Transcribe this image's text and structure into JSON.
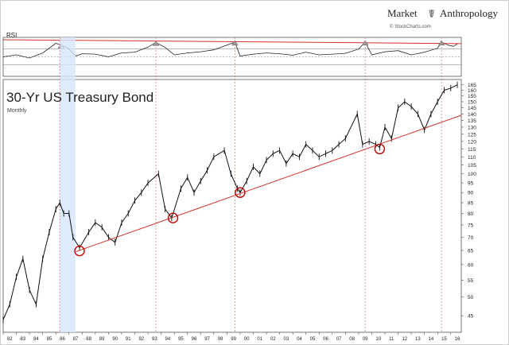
{
  "header": {
    "brand_left": "Market",
    "brand_right": "Anthropology",
    "source": "© StockCharts.com"
  },
  "rsi_panel": {
    "label": "RSI",
    "ylim": [
      0,
      100
    ],
    "upper_band": 70,
    "lower_band": 30,
    "mid_line": 50
  },
  "main_panel": {
    "title": "30-Yr US Treasury Bond",
    "subtitle": "Monthly"
  },
  "chart_data": {
    "type": "line",
    "title": "30-Yr US Treasury Bond",
    "subtitle": "Monthly",
    "y_scale": "log",
    "ylim": [
      41,
      170
    ],
    "xlim": [
      1982.0,
      2016.8
    ],
    "y_ticks": [
      45,
      50,
      55,
      60,
      65,
      70,
      75,
      80,
      85,
      90,
      95,
      100,
      105,
      110,
      115,
      120,
      125,
      130,
      135,
      140,
      145,
      150,
      155,
      160,
      165
    ],
    "x_ticks": [
      "82",
      "83",
      "84",
      "85",
      "86",
      "87",
      "88",
      "89",
      "90",
      "91",
      "92",
      "93",
      "94",
      "95",
      "96",
      "97",
      "98",
      "99",
      "00",
      "01",
      "02",
      "03",
      "04",
      "05",
      "06",
      "07",
      "08",
      "09",
      "10",
      "11",
      "12",
      "13",
      "14",
      "15",
      "16"
    ],
    "series": [
      {
        "x": [
          1982.0,
          1982.5,
          1983.0,
          1983.5,
          1984.0,
          1984.5,
          1985.0,
          1985.5,
          1986.0,
          1986.3,
          1986.6,
          1987.0,
          1987.3,
          1987.8,
          1988.5,
          1989.0,
          1989.5,
          1990.0,
          1990.5,
          1991.0,
          1991.5,
          1992.0,
          1992.5,
          1993.0,
          1993.8,
          1994.3,
          1994.8,
          1995.5,
          1996.0,
          1996.5,
          1997.0,
          1997.5,
          1998.0,
          1998.8,
          1999.3,
          1999.8,
          2000.0,
          2000.5,
          2001.0,
          2001.5,
          2002.0,
          2002.5,
          2003.0,
          2003.5,
          2004.0,
          2004.5,
          2005.0,
          2005.5,
          2006.0,
          2006.5,
          2007.0,
          2007.5,
          2008.0,
          2008.9,
          2009.3,
          2009.8,
          2010.3,
          2010.6,
          2011.0,
          2011.5,
          2012.0,
          2012.5,
          2013.0,
          2013.5,
          2014.0,
          2014.5,
          2015.0,
          2015.5,
          2016.0,
          2016.5
        ],
        "y": [
          44,
          48,
          56,
          62,
          52,
          48,
          62,
          72,
          82,
          85,
          80,
          80,
          70,
          66,
          72,
          76,
          74,
          70,
          68,
          76,
          80,
          86,
          90,
          95,
          100,
          82,
          78,
          92,
          98,
          90,
          96,
          102,
          110,
          114,
          100,
          92,
          90,
          96,
          104,
          100,
          108,
          112,
          114,
          106,
          112,
          110,
          118,
          114,
          110,
          112,
          114,
          118,
          122,
          140,
          118,
          120,
          118,
          116,
          130,
          122,
          145,
          150,
          146,
          140,
          128,
          140,
          150,
          160,
          162,
          165
        ]
      }
    ],
    "support_line": {
      "x": [
        1987.5,
        2016.8
      ],
      "y": [
        64.5,
        139
      ]
    },
    "rsi_series": {
      "x": [
        1982.0,
        1983,
        1984,
        1985,
        1986.0,
        1986.4,
        1986.9,
        1987.5,
        1988,
        1989,
        1990,
        1991,
        1992,
        1993.0,
        1993.6,
        1994.3,
        1995,
        1996,
        1997,
        1998,
        1999.0,
        1999.6,
        2000,
        2001,
        2002,
        2003,
        2004,
        2005,
        2006,
        2007,
        2008,
        2009.0,
        2009.5,
        2010,
        2011,
        2012,
        2013,
        2014,
        2015.0,
        2015.3,
        2015.8,
        2016.2,
        2016.5
      ],
      "y": [
        50,
        55,
        47,
        60,
        85,
        80,
        73,
        52,
        58,
        57,
        50,
        60,
        62,
        75,
        87,
        74,
        55,
        60,
        63,
        68,
        80,
        88,
        52,
        57,
        60,
        58,
        54,
        62,
        55,
        57,
        59,
        70,
        88,
        55,
        63,
        66,
        55,
        62,
        72,
        88,
        80,
        77,
        83
      ]
    },
    "rsi_resistance": {
      "x": [
        1982.0,
        2016.8
      ],
      "y": [
        94,
        84
      ]
    },
    "circles": [
      {
        "x": 1987.8,
        "y": 64.8
      },
      {
        "x": 1994.9,
        "y": 78
      },
      {
        "x": 2000.0,
        "y": 90
      },
      {
        "x": 2010.6,
        "y": 115
      }
    ],
    "vertical_markers": [
      1986.3,
      1993.6,
      1999.6,
      2009.5,
      2015.3
    ],
    "shaded_region": [
      1986.3,
      1987.5
    ]
  },
  "colors": {
    "price": "#111111",
    "trend": "#d0312d",
    "marker": "#e06a6a",
    "shade": "#d6e6fb",
    "grid": "#888888"
  }
}
